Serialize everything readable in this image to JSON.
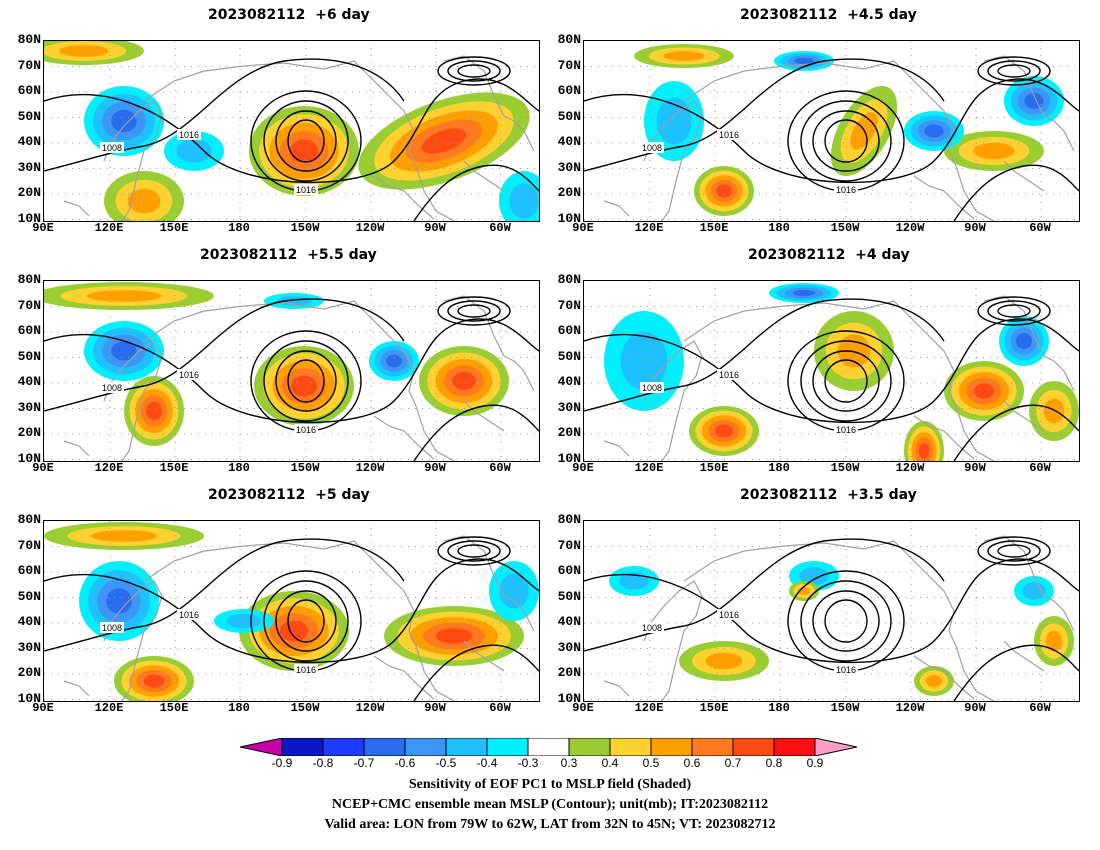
{
  "panels": [
    {
      "title": "2023082112  +6 day"
    },
    {
      "title": "2023082112  +4.5 day"
    },
    {
      "title": "2023082112  +5.5 day"
    },
    {
      "title": "2023082112  +4 day"
    },
    {
      "title": "2023082112  +5 day"
    },
    {
      "title": "2023082112  +3.5 day"
    }
  ],
  "lat_labels": [
    "80N",
    "70N",
    "60N",
    "50N",
    "40N",
    "30N",
    "20N",
    "10N"
  ],
  "lon_labels": [
    "90E",
    "120E",
    "150E",
    "180",
    "150W",
    "120W",
    "90W",
    "60W"
  ],
  "contour_labels": [
    "1008",
    "1016"
  ],
  "colorbar": {
    "labels": [
      "-0.9",
      "-0.8",
      "-0.7",
      "-0.6",
      "-0.5",
      "-0.4",
      "-0.3",
      "0.3",
      "0.4",
      "0.5",
      "0.6",
      "0.7",
      "0.8",
      "0.9"
    ],
    "colors": [
      "#c400a8",
      "#0a16c8",
      "#1e3cff",
      "#2a6cf0",
      "#3c96f5",
      "#1ec0ff",
      "#00f0ff",
      "#ffffff",
      "#9acd32",
      "#ffd232",
      "#ffa000",
      "#ff7a1e",
      "#ff4a12",
      "#ff1010",
      "#ff9ec8"
    ]
  },
  "footer": {
    "line1": "Sensitivity of EOF PC1 to MSLP field (Shaded)",
    "line2": "NCEP+CMC ensemble mean MSLP (Contour); unit(mb); IT:2023082112",
    "line3": "Valid area: LON from 79W to 62W, LAT from 32N to 45N; VT: 2023082712"
  }
}
